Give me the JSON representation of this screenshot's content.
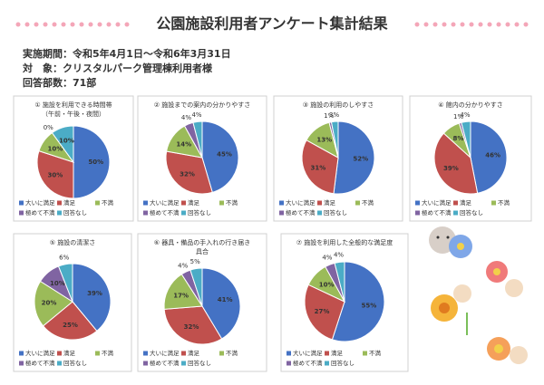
{
  "header": {
    "title": "公園施設利用者アンケート集計結果",
    "info": [
      "実施期間：令和5年4月1日～令和6年3月31日",
      "対　象：クリスタルパーク管理棟利用者様",
      "回答部数：71部"
    ]
  },
  "chart_data": [
    {
      "type": "pie",
      "title": [
        "① 施設を利用できる時間帯",
        "（午前・午後・夜間）"
      ],
      "categories": [
        "大いに満足",
        "満足",
        "不満",
        "極めて不満",
        "回答なし"
      ],
      "colors": [
        "#4472c4",
        "#c0504d",
        "#9bbb59",
        "#8064a2",
        "#4bacc6"
      ],
      "values": [
        50,
        30,
        10,
        0,
        10
      ],
      "value_labels": [
        "50%",
        "30%",
        "10%",
        "0%",
        "10%"
      ]
    },
    {
      "type": "pie",
      "title": [
        "② 施設までの案内の分かりやすさ"
      ],
      "categories": [
        "大いに満足",
        "満足",
        "不満",
        "極めて不満",
        "回答なし"
      ],
      "colors": [
        "#4472c4",
        "#c0504d",
        "#9bbb59",
        "#8064a2",
        "#4bacc6"
      ],
      "values": [
        45,
        32,
        14,
        4,
        4
      ],
      "value_labels": [
        "45%",
        "32%",
        "14%",
        "4%",
        "4%"
      ]
    },
    {
      "type": "pie",
      "title": [
        "③ 施設の利用のしやすさ"
      ],
      "categories": [
        "大いに満足",
        "満足",
        "不満",
        "極めて不満",
        "回答なし"
      ],
      "colors": [
        "#4472c4",
        "#c0504d",
        "#9bbb59",
        "#8064a2",
        "#4bacc6"
      ],
      "values": [
        52,
        31,
        13,
        1,
        3
      ],
      "value_labels": [
        "52%",
        "31%",
        "13%",
        "1%",
        "3%"
      ]
    },
    {
      "type": "pie",
      "title": [
        "④ 館内の分かりやすさ"
      ],
      "categories": [
        "大いに満足",
        "満足",
        "不満",
        "極めて不満",
        "回答なし"
      ],
      "colors": [
        "#4472c4",
        "#c0504d",
        "#9bbb59",
        "#8064a2",
        "#4bacc6"
      ],
      "values": [
        46,
        39,
        8,
        1,
        4
      ],
      "value_labels": [
        "46%",
        "39%",
        "8%",
        "1%",
        "4%"
      ]
    },
    {
      "type": "pie",
      "title": [
        "⑤ 施設の清潔さ"
      ],
      "categories": [
        "大いに満足",
        "満足",
        "不満",
        "極めて不満",
        "回答なし"
      ],
      "colors": [
        "#4472c4",
        "#c0504d",
        "#9bbb59",
        "#8064a2",
        "#4bacc6"
      ],
      "values": [
        39,
        25,
        20,
        10,
        6
      ],
      "value_labels": [
        "39%",
        "25%",
        "20%",
        "10%",
        "6%"
      ]
    },
    {
      "type": "pie",
      "title": [
        "⑥ 器具・備品の手入れの行き届き",
        "具合"
      ],
      "categories": [
        "大いに満足",
        "満足",
        "不満",
        "極めて不満",
        "回答なし"
      ],
      "colors": [
        "#4472c4",
        "#c0504d",
        "#9bbb59",
        "#8064a2",
        "#4bacc6"
      ],
      "values": [
        41,
        32,
        17,
        4,
        5
      ],
      "value_labels": [
        "41%",
        "32%",
        "17%",
        "4%",
        "5%"
      ]
    },
    {
      "type": "pie",
      "title": [
        "⑦ 施設を利用した全般的な満足度"
      ],
      "categories": [
        "大いに満足",
        "満足",
        "不満",
        "極めて不満",
        "回答なし"
      ],
      "colors": [
        "#4472c4",
        "#c0504d",
        "#9bbb59",
        "#8064a2",
        "#4bacc6"
      ],
      "values": [
        55,
        27,
        10,
        4,
        4
      ],
      "value_labels": [
        "55%",
        "27%",
        "10%",
        "4%",
        "4%"
      ]
    }
  ]
}
